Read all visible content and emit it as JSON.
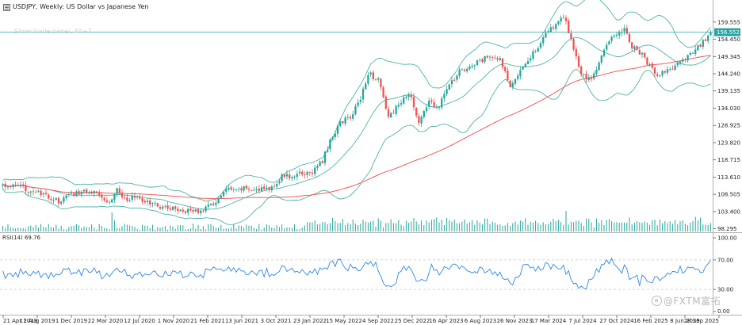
{
  "window": {
    "symbol_title": "USDJPY, Weekly:  US Dollar vs Japanese Yen",
    "trade_panel_hint": "Show trade panel, Alt+T",
    "watermark": "@FXTM富拓"
  },
  "colors": {
    "bull": "#26a69a",
    "bear": "#ef5350",
    "bollinger": "#4cb3aa",
    "ma": "#f05a5a",
    "rsi": "#2f86e6",
    "volume": "#26a69a",
    "current_line": "#2aa3a3",
    "price_tag": "#2aa3a3",
    "text": "#222222",
    "grid": "#cccccc",
    "separator": "#b0b0b0"
  },
  "chart_data": {
    "type": "candlestick",
    "symbol": "USDJPY",
    "timeframe": "Weekly",
    "description": "US Dollar vs Japanese Yen",
    "current_price": "156.552",
    "y_axis_labels": [
      "159.555",
      "154.450",
      "149.345",
      "144.240",
      "139.135",
      "134.030",
      "128.925",
      "123.820",
      "118.715",
      "113.610",
      "108.505",
      "103.400",
      "98.295"
    ],
    "ylim": [
      97.5,
      162.8
    ],
    "x_labels": [
      "21 Apr 2019",
      "11 Aug 2019",
      "1 Dec 2019",
      "22 Mar 2020",
      "12 Jul 2020",
      "1 Nov 2020",
      "21 Feb 2021",
      "13 Jun 2021",
      "3 Oct 2021",
      "23 Jan 2022",
      "15 May 2022",
      "4 Sep 2022",
      "25 Dec 2022",
      "16 Apr 2023",
      "6 Aug 2023",
      "26 Nov 2023",
      "17 Mar 2024",
      "7 Jul 2024",
      "27 Oct 2024",
      "16 Feb 2025",
      "8 Jun 2025",
      "28 Sep 2025"
    ],
    "price_path": [
      [
        0,
        111.2
      ],
      [
        8,
        110.5
      ],
      [
        16,
        108.2
      ],
      [
        22,
        106.4
      ],
      [
        28,
        108.8
      ],
      [
        33,
        109.5
      ],
      [
        38,
        108.9
      ],
      [
        42,
        106.0
      ],
      [
        45,
        110.2
      ],
      [
        48,
        107.0
      ],
      [
        52,
        107.6
      ],
      [
        58,
        105.8
      ],
      [
        64,
        104.6
      ],
      [
        70,
        104.0
      ],
      [
        75,
        103.4
      ],
      [
        80,
        104.2
      ],
      [
        84,
        106.4
      ],
      [
        88,
        109.8
      ],
      [
        92,
        109.4
      ],
      [
        96,
        110.5
      ],
      [
        100,
        109.6
      ],
      [
        106,
        110.6
      ],
      [
        110,
        113.8
      ],
      [
        114,
        113.9
      ],
      [
        118,
        114.6
      ],
      [
        122,
        115.1
      ],
      [
        126,
        118.5
      ],
      [
        129,
        124.2
      ],
      [
        133,
        130.0
      ],
      [
        137,
        131.2
      ],
      [
        141,
        137.0
      ],
      [
        144,
        144.6
      ],
      [
        148,
        142.2
      ],
      [
        152,
        131.5
      ],
      [
        156,
        134.8
      ],
      [
        160,
        138.5
      ],
      [
        164,
        130.4
      ],
      [
        168,
        135.6
      ],
      [
        172,
        134.4
      ],
      [
        176,
        141.4
      ],
      [
        180,
        144.7
      ],
      [
        184,
        146.1
      ],
      [
        188,
        147.9
      ],
      [
        192,
        149.6
      ],
      [
        196,
        148.3
      ],
      [
        200,
        141.0
      ],
      [
        202,
        143.0
      ],
      [
        206,
        147.9
      ],
      [
        210,
        151.0
      ],
      [
        214,
        156.6
      ],
      [
        218,
        158.2
      ],
      [
        221,
        161.4
      ],
      [
        225,
        152.1
      ],
      [
        228,
        143.8
      ],
      [
        232,
        142.4
      ],
      [
        235,
        147.9
      ],
      [
        239,
        153.7
      ],
      [
        242,
        156.1
      ],
      [
        245,
        158.0
      ],
      [
        248,
        152.5
      ],
      [
        252,
        149.8
      ],
      [
        255,
        146.4
      ],
      [
        258,
        143.5
      ],
      [
        261,
        144.6
      ],
      [
        265,
        146.5
      ],
      [
        268,
        147.8
      ],
      [
        271,
        149.8
      ],
      [
        275,
        152.6
      ],
      [
        279,
        156.55
      ]
    ],
    "bollinger_bands": {
      "period": 20,
      "deviations": 2
    },
    "moving_average": {
      "type": "SMA",
      "period": 100
    },
    "volume": {
      "type": "tick_volume"
    },
    "rsi": {
      "label": "RSI(14) 69.76",
      "period": 14,
      "current": 69.76,
      "ylim": [
        0,
        100
      ],
      "axis_labels": [
        "100.00",
        "70.00",
        "30.00",
        "0.00"
      ],
      "levels": [
        70,
        30
      ]
    }
  }
}
